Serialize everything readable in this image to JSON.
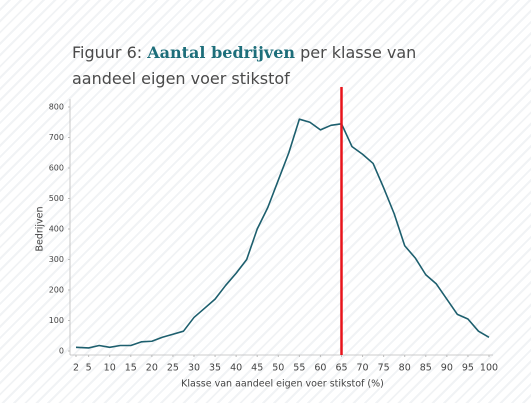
{
  "chart_data": {
    "type": "line",
    "title": [
      "Figuur 6:",
      "Aantal bedrijven",
      "per klasse van aandeel eigen voer stikstof"
    ],
    "xlabel": "Klasse van aandeel eigen voer stikstof (%)",
    "ylabel": "Bedrijven",
    "x": [
      2,
      5,
      7.5,
      10,
      12.5,
      15,
      17.5,
      20,
      22.5,
      25,
      27.5,
      30,
      32.5,
      35,
      37.5,
      40,
      42.5,
      45,
      47.5,
      50,
      52.5,
      55,
      57.5,
      60,
      62.5,
      65,
      67.5,
      70,
      72.5,
      75,
      77.5,
      80,
      82.5,
      85,
      87.5,
      90,
      92.5,
      95,
      97.5,
      100
    ],
    "series": [
      {
        "name": "Bedrijven",
        "color": "#1d5f6e",
        "values": [
          12,
          10,
          18,
          12,
          18,
          18,
          30,
          32,
          45,
          55,
          65,
          110,
          140,
          170,
          215,
          255,
          300,
          400,
          470,
          560,
          650,
          760,
          750,
          725,
          740,
          745,
          670,
          645,
          615,
          535,
          450,
          345,
          305,
          250,
          220,
          170,
          120,
          105,
          65,
          45
        ]
      }
    ],
    "xlim": [
      2,
      100
    ],
    "xticks": [
      2,
      5,
      10,
      15,
      20,
      25,
      30,
      35,
      40,
      45,
      50,
      55,
      60,
      65,
      70,
      75,
      80,
      85,
      90,
      95,
      100
    ],
    "ylim": [
      0,
      800
    ],
    "yticks": [
      0,
      100,
      200,
      300,
      400,
      500,
      600,
      700,
      800
    ],
    "reference_line": {
      "x": 65,
      "color": "#e8141b"
    }
  }
}
